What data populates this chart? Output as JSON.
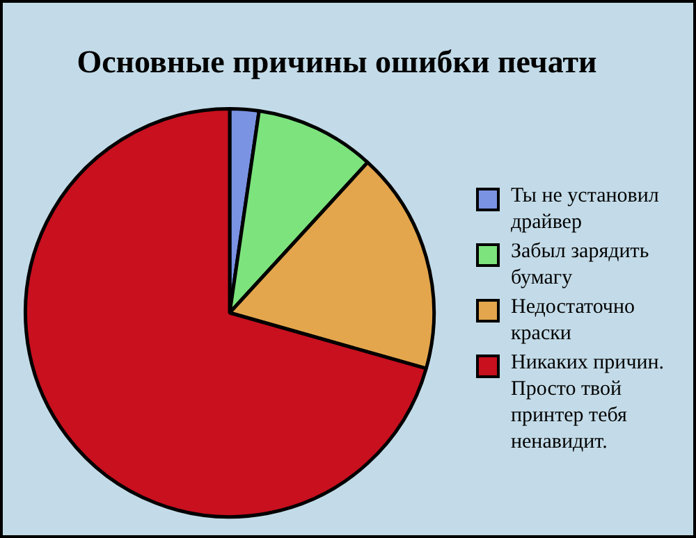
{
  "chart_data": {
    "type": "pie",
    "title": "Основные причины ошибки печати",
    "categories": [
      "Ты не установил драйвер",
      "Забыл зарядить бумагу",
      "Недостаточно краски",
      "Никаких причин. Просто твой принтер тебя ненавидит."
    ],
    "values": [
      2.3,
      9.5,
      17.6,
      70.6
    ],
    "colors": [
      "#7b93e3",
      "#7de37d",
      "#e3a64c",
      "#c8101e"
    ],
    "legend": "right"
  }
}
